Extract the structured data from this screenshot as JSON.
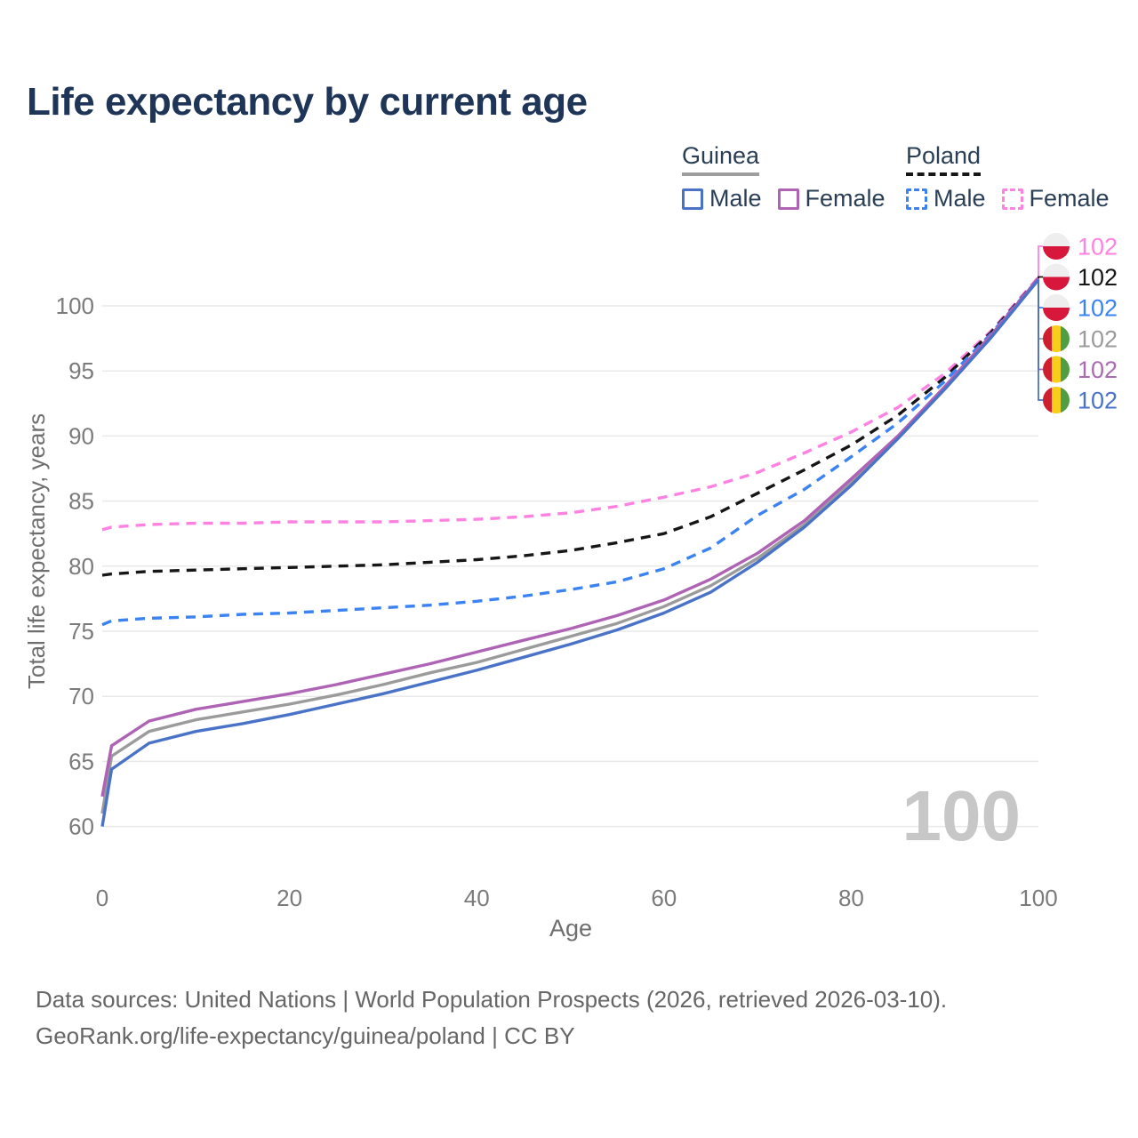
{
  "title": "Life expectancy by current age",
  "legend": {
    "groups": [
      {
        "country": "Guinea",
        "line_style": "solid",
        "underline_color": "#9e9e9e",
        "items": [
          {
            "label": "Male",
            "color": "#4a73c8"
          },
          {
            "label": "Female",
            "color": "#ae63b5"
          }
        ]
      },
      {
        "country": "Poland",
        "line_style": "dashed",
        "underline_color": "#161616",
        "items": [
          {
            "label": "Male",
            "color": "#3b82f3"
          },
          {
            "label": "Female",
            "color": "#ff82e2"
          }
        ]
      }
    ]
  },
  "watermark_age": "100",
  "footer": {
    "line1": "Data sources: United Nations | World Population Prospects (2026, retrieved 2026-03-10).",
    "line2": "GeoRank.org/life-expectancy/guinea/poland | CC BY"
  },
  "chart_data": {
    "type": "line",
    "title": "Life expectancy by current age",
    "xlabel": "Age",
    "ylabel": "Total life expectancy, years",
    "xlim": [
      0,
      100
    ],
    "ylim": [
      58,
      104
    ],
    "xticks": [
      0,
      20,
      40,
      60,
      80,
      100
    ],
    "yticks": [
      60,
      65,
      70,
      75,
      80,
      85,
      90,
      95,
      100
    ],
    "grid": "horizontal",
    "legend_position": "top-right",
    "ages": [
      0,
      1,
      5,
      10,
      15,
      20,
      25,
      30,
      35,
      40,
      45,
      50,
      55,
      60,
      65,
      70,
      75,
      80,
      85,
      90,
      95,
      100
    ],
    "series": [
      {
        "id": "poland-female",
        "name": "Poland Female",
        "country": "Poland",
        "sex": "Female",
        "color": "#ff82e2",
        "dash": true,
        "flag_icon": "poland-flag-icon",
        "end_label": "102",
        "end_label_color": "#ff82e2",
        "values": [
          82.8,
          83.0,
          83.2,
          83.3,
          83.3,
          83.4,
          83.4,
          83.4,
          83.5,
          83.6,
          83.8,
          84.1,
          84.6,
          85.3,
          86.1,
          87.2,
          88.7,
          90.3,
          92.2,
          94.8,
          98.1,
          102.2
        ]
      },
      {
        "id": "poland-both",
        "name": "Poland Both sexes",
        "country": "Poland",
        "sex": "Both",
        "color": "#161616",
        "dash": true,
        "flag_icon": "poland-flag-icon",
        "end_label": "102",
        "end_label_color": "#161616",
        "values": [
          79.3,
          79.4,
          79.6,
          79.7,
          79.8,
          79.9,
          80.0,
          80.1,
          80.3,
          80.5,
          80.8,
          81.2,
          81.8,
          82.5,
          83.8,
          85.6,
          87.4,
          89.3,
          91.6,
          94.5,
          98.0,
          102.1
        ]
      },
      {
        "id": "poland-male",
        "name": "Poland Male",
        "country": "Poland",
        "sex": "Male",
        "color": "#3b82f3",
        "dash": true,
        "flag_icon": "poland-flag-icon",
        "end_label": "102",
        "end_label_color": "#3b82f3",
        "values": [
          75.5,
          75.8,
          76.0,
          76.1,
          76.3,
          76.4,
          76.6,
          76.8,
          77.0,
          77.3,
          77.7,
          78.2,
          78.8,
          79.8,
          81.4,
          83.9,
          85.9,
          88.4,
          91.0,
          94.2,
          97.9,
          102.1
        ]
      },
      {
        "id": "guinea-both",
        "name": "Guinea Both sexes",
        "country": "Guinea",
        "sex": "Both",
        "color": "#9b9b9b",
        "dash": false,
        "flag_icon": "guinea-flag-icon",
        "end_label": "102",
        "end_label_color": "#9b9b9b",
        "values": [
          61.0,
          65.4,
          67.3,
          68.2,
          68.8,
          69.4,
          70.1,
          70.9,
          71.8,
          72.6,
          73.6,
          74.6,
          75.6,
          76.9,
          78.5,
          80.6,
          83.2,
          86.4,
          89.9,
          93.7,
          97.7,
          102.0
        ]
      },
      {
        "id": "guinea-female",
        "name": "Guinea Female",
        "country": "Guinea",
        "sex": "Female",
        "color": "#ae63b5",
        "dash": false,
        "flag_icon": "guinea-flag-icon",
        "end_label": "102",
        "end_label_color": "#a96cb1",
        "values": [
          62.3,
          66.2,
          68.1,
          69.0,
          69.6,
          70.2,
          70.9,
          71.7,
          72.5,
          73.4,
          74.3,
          75.2,
          76.2,
          77.4,
          79.0,
          81.0,
          83.5,
          86.7,
          90.0,
          93.8,
          97.8,
          102.1
        ]
      },
      {
        "id": "guinea-male",
        "name": "Guinea Male",
        "country": "Guinea",
        "sex": "Male",
        "color": "#4a73c8",
        "dash": false,
        "flag_icon": "guinea-flag-icon",
        "end_label": "102",
        "end_label_color": "#4a73c8",
        "values": [
          60.0,
          64.4,
          66.4,
          67.3,
          67.9,
          68.6,
          69.4,
          70.2,
          71.1,
          72.0,
          73.0,
          74.0,
          75.1,
          76.4,
          78.0,
          80.3,
          83.0,
          86.2,
          89.8,
          93.6,
          97.6,
          102.0
        ]
      }
    ],
    "flag_colors": {
      "poland": {
        "top": "#eeeeee",
        "bottom": "#d8173c"
      },
      "guinea": {
        "left": "#ce1f2e",
        "middle": "#f7ce1b",
        "right": "#4f9e44"
      }
    }
  }
}
